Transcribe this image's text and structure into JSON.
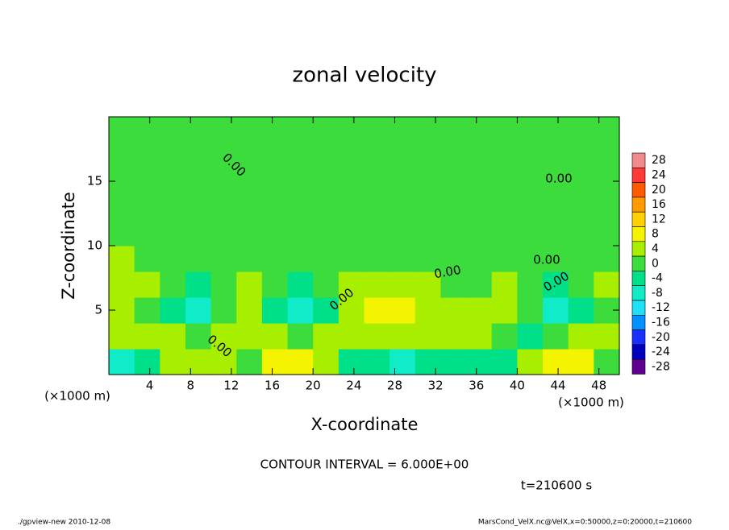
{
  "chart_data": {
    "type": "contour",
    "title": "zonal velocity",
    "xlabel": "X-coordinate",
    "ylabel": "Z-coordinate",
    "xunit_labels": [
      "(×1000 m)",
      "(×1000 m)"
    ],
    "xlim": [
      0,
      50
    ],
    "ylim": [
      0,
      20
    ],
    "xticks": [
      4,
      8,
      12,
      16,
      20,
      24,
      28,
      32,
      36,
      40,
      44,
      48
    ],
    "yticks": [
      5,
      10,
      15
    ],
    "x": [
      1.25,
      3.75,
      6.25,
      8.75,
      11.25,
      13.75,
      16.25,
      18.75,
      21.25,
      23.75,
      26.25,
      28.75,
      31.25,
      33.75,
      36.25,
      38.75,
      41.25,
      43.75,
      46.25,
      48.75
    ],
    "y": [
      1,
      3,
      5,
      7,
      9,
      11,
      13,
      15,
      17,
      19
    ],
    "z": [
      [
        -10,
        -3,
        3,
        5,
        2,
        -2,
        6,
        9,
        3,
        -3,
        -6,
        -7,
        -3,
        -4,
        -6,
        -3,
        3,
        7,
        6,
        0
      ],
      [
        3,
        4,
        2,
        0,
        2,
        4,
        2,
        0,
        2,
        4,
        4,
        3,
        4,
        4,
        2,
        -1,
        -4,
        -2,
        2,
        3
      ],
      [
        2,
        0,
        -5,
        -8,
        -2,
        2,
        -4,
        -8,
        -3,
        2,
        6,
        7,
        4,
        2,
        3,
        3,
        -2,
        -8,
        -6,
        0
      ],
      [
        3,
        2,
        -2,
        -3,
        1,
        3,
        -2,
        -3,
        1,
        2,
        4,
        4,
        2,
        0,
        1,
        2,
        0,
        -3,
        -2,
        2
      ],
      [
        2,
        1,
        1,
        1,
        1,
        1,
        1,
        1,
        1,
        1,
        1,
        1,
        1,
        0,
        0,
        0,
        0,
        1,
        1,
        1
      ],
      [
        0,
        0,
        0,
        0,
        0,
        0,
        0,
        0,
        0,
        0,
        0,
        0,
        0,
        0,
        0,
        0,
        0,
        0,
        0,
        0
      ],
      [
        0,
        0,
        0,
        0,
        0,
        0,
        0,
        0,
        0,
        0,
        0,
        0,
        0,
        0,
        0,
        0,
        0,
        0,
        0,
        0
      ],
      [
        0,
        0,
        0,
        0,
        0,
        0,
        0,
        0,
        0,
        0,
        0,
        0,
        0,
        0,
        0,
        0,
        0,
        0,
        0,
        0
      ],
      [
        0,
        0,
        0,
        0,
        0,
        0,
        0,
        0,
        0,
        0,
        0,
        0,
        0,
        0,
        0,
        0,
        0,
        0,
        0,
        0
      ],
      [
        0,
        0,
        0,
        0,
        0,
        0,
        0,
        0,
        0,
        0,
        0,
        0,
        0,
        0,
        0,
        0,
        0,
        0,
        0,
        0
      ]
    ],
    "colorbar": {
      "levels": [
        28,
        24,
        20,
        16,
        12,
        8,
        4,
        0,
        -4,
        -8,
        -12,
        -16,
        -20,
        -24,
        -28
      ],
      "colors": [
        "#f08a8a",
        "#ff3838",
        "#ff5a00",
        "#ff9a00",
        "#ffd000",
        "#f4f400",
        "#a8ee00",
        "#3cdc3c",
        "#00e088",
        "#10ecc8",
        "#20e0f4",
        "#0090ff",
        "#1a30ff",
        "#0000c0",
        "#600090"
      ]
    },
    "contour_labels": [
      "0.00",
      "0.00",
      "0.00",
      "0.00",
      "0.00",
      "0.00",
      "0.00"
    ],
    "note": "CONTOUR INTERVAL = 6.000E+00",
    "time_label": "t=210600 s",
    "footer_left": "./gpview-new   2010-12-08",
    "footer_right": "MarsCond_VelX.nc@VelX,x=0:50000,z=0:20000,t=210600"
  }
}
